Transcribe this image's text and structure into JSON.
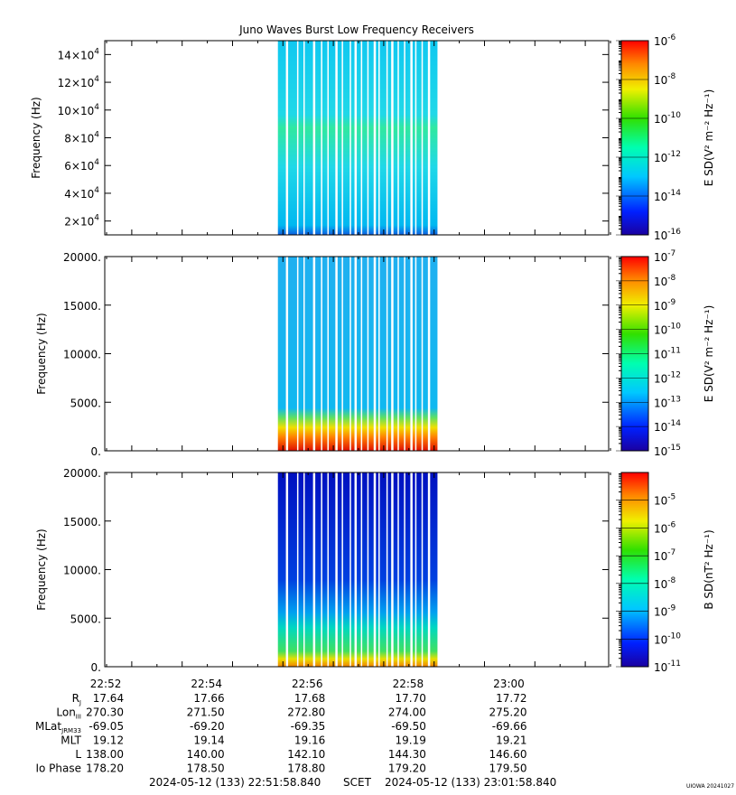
{
  "chart_data": {
    "type": "heatmap",
    "title": "Juno Waves Burst Low Frequency Receivers",
    "x": {
      "label": "SCET",
      "ticks": [
        "22:52",
        "22:54",
        "22:56",
        "22:58",
        "23:00"
      ],
      "start": "2024-05-12 (133) 22:51:58.840",
      "end": "2024-05-12 (133) 23:01:58.840",
      "data_window": [
        "22:55:25",
        "22:58:35"
      ]
    },
    "panels": [
      {
        "ylabel": "Frequency (Hz)",
        "y_ticks": [
          {
            "mant": "2",
            "exp": "4"
          },
          {
            "mant": "4",
            "exp": "4"
          },
          {
            "mant": "6",
            "exp": "4"
          },
          {
            "mant": "8",
            "exp": "4"
          },
          {
            "mant": "10",
            "exp": "4"
          },
          {
            "mant": "12",
            "exp": "4"
          },
          {
            "mant": "14",
            "exp": "4"
          }
        ],
        "ylim": [
          10000,
          150000
        ],
        "colorbar_label": "E SD(V² m⁻² Hz⁻¹)",
        "colorbar_ticks": [
          "-6",
          "-8",
          "-10",
          "-12",
          "-14",
          "-16"
        ],
        "colorbar_range": [
          1e-16,
          1e-06
        ]
      },
      {
        "ylabel": "Frequency (Hz)",
        "y_ticks": [
          "20000.",
          "15000.",
          "10000.",
          "5000.",
          "0."
        ],
        "ylim": [
          0,
          20000
        ],
        "colorbar_label": "E SD(V² m⁻² Hz⁻¹)",
        "colorbar_ticks": [
          "-7",
          "-8",
          "-9",
          "-10",
          "-11",
          "-12",
          "-13",
          "-14",
          "-15"
        ],
        "colorbar_range": [
          1e-15,
          1e-07
        ]
      },
      {
        "ylabel": "Frequency (Hz)",
        "y_ticks": [
          "20000.",
          "15000.",
          "10000.",
          "5000.",
          "0."
        ],
        "ylim": [
          0,
          20000
        ],
        "colorbar_label": "B SD(nT² Hz⁻¹)",
        "colorbar_ticks": [
          "-5",
          "-6",
          "-7",
          "-8",
          "-9",
          "-10",
          "-11"
        ],
        "colorbar_range": [
          1e-11,
          0.0001
        ]
      }
    ],
    "ephemeris": [
      {
        "label": "R",
        "sub": "J",
        "values": [
          "17.64",
          "17.66",
          "17.68",
          "17.70",
          "17.72"
        ]
      },
      {
        "label": "Lon",
        "sub": "III",
        "values": [
          "270.30",
          "271.50",
          "272.80",
          "274.00",
          "275.20"
        ]
      },
      {
        "label": "MLat",
        "sub": "JRM33",
        "values": [
          "-69.05",
          "-69.20",
          "-69.35",
          "-69.50",
          "-69.66"
        ]
      },
      {
        "label": "MLT",
        "sub": "",
        "values": [
          "19.12",
          "19.14",
          "19.16",
          "19.19",
          "19.21"
        ]
      },
      {
        "label": "L",
        "sub": "",
        "values": [
          "138.00",
          "140.00",
          "142.10",
          "144.30",
          "146.60"
        ]
      },
      {
        "label": "Io Phase",
        "sub": "",
        "values": [
          "178.20",
          "178.50",
          "178.80",
          "179.20",
          "179.50"
        ]
      }
    ],
    "footer": {
      "start": "2024-05-12 (133) 22:51:58.840",
      "mid": "SCET",
      "end": "2024-05-12 (133) 23:01:58.840",
      "stamp": "UIOWA 20241027"
    }
  }
}
